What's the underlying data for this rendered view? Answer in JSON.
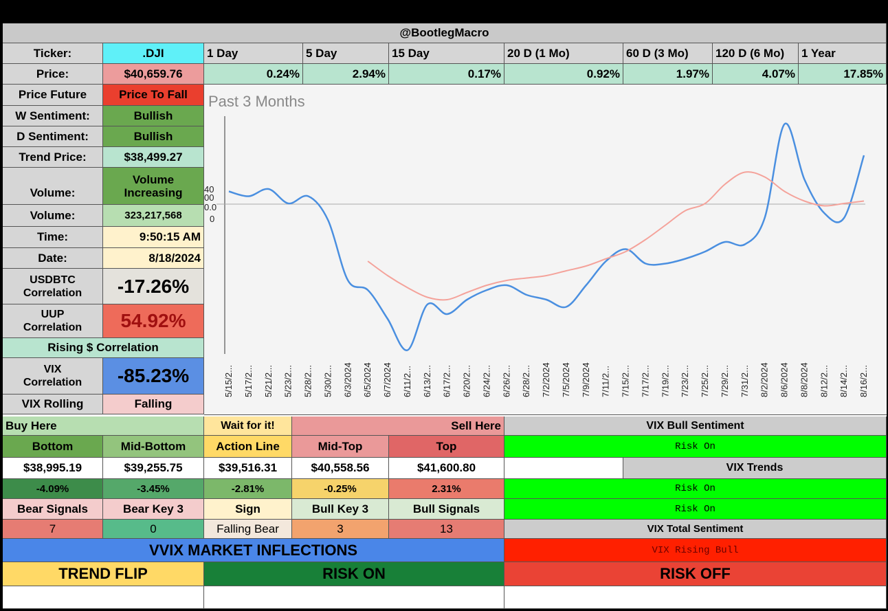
{
  "header": {
    "title": "@BootlegMacro"
  },
  "left": {
    "ticker_label": "Ticker:",
    "ticker_value": ".DJI",
    "price_label": "Price:",
    "price_value": "$40,659.76",
    "price_future_label": "Price Future",
    "price_future_value": "Price To Fall",
    "w_sent_label": "W Sentiment:",
    "w_sent_value": "Bullish",
    "d_sent_label": "D Sentiment:",
    "d_sent_value": "Bullish",
    "trend_label": "Trend Price:",
    "trend_value": "$38,499.27",
    "volume_label": "Volume:",
    "volume_value_1": "Volume",
    "volume_value_2": "Increasing",
    "volume2_label": "Volume:",
    "volume2_value": "323,217,568",
    "time_label": "Time:",
    "time_value": "9:50:15 AM",
    "date_label": "Date:",
    "date_value": "8/18/2024",
    "usdbtc_label_1": "USDBTC",
    "usdbtc_label_2": "Correlation",
    "usdbtc_value": "-17.26%",
    "uup_label_1": "UUP",
    "uup_label_2": "Correlation",
    "uup_value": "54.92%",
    "rising_label": "Rising $ Correlation",
    "vix_label_1": "VIX",
    "vix_label_2": "Correlation",
    "vix_value": "-85.23%",
    "vix_rolling_label": "VIX Rolling",
    "vix_rolling_value": "Falling"
  },
  "periods": [
    {
      "label": "1 Day",
      "value": "0.24%"
    },
    {
      "label": "5 Day",
      "value": "2.94%"
    },
    {
      "label": "15 Day",
      "value": "0.17%"
    },
    {
      "label": "20 D (1 Mo)",
      "value": "0.92%"
    },
    {
      "label": "60 D (3 Mo)",
      "value": "1.97%"
    },
    {
      "label": "120 D (6 Mo)",
      "value": "4.07%"
    },
    {
      "label": "1 Year",
      "value": "17.85%"
    }
  ],
  "chart_data": {
    "type": "line",
    "title": "Past 3 Months",
    "y_tick_fragments": [
      "40",
      "00",
      "0.0",
      "0"
    ],
    "x": [
      "5/15/2...",
      "5/17/2...",
      "5/21/2...",
      "5/23/2...",
      "5/28/2...",
      "5/30/2...",
      "6/3/2024",
      "6/5/2024",
      "6/7/2024",
      "6/11/2...",
      "6/13/2...",
      "6/17/2...",
      "6/20/2...",
      "6/24/2...",
      "6/26/2...",
      "6/28/2...",
      "7/2/2024",
      "7/5/2024",
      "7/9/2024",
      "7/11/2...",
      "7/15/2...",
      "7/17/2...",
      "7/19/2...",
      "7/23/2...",
      "7/25/2...",
      "7/29/2...",
      "7/31/2...",
      "8/2/2024",
      "8/6/2024",
      "8/8/2024",
      "8/12/2...",
      "8/14/2...",
      "8/16/2..."
    ],
    "ylim": [
      0,
      1
    ],
    "series": [
      {
        "color": "#4a8fe0",
        "values": [
          0.67,
          0.65,
          0.68,
          0.62,
          0.65,
          0.55,
          0.3,
          0.26,
          0.14,
          0.01,
          0.2,
          0.16,
          0.22,
          0.26,
          0.28,
          0.24,
          0.22,
          0.19,
          0.28,
          0.38,
          0.43,
          0.37,
          0.37,
          0.39,
          0.42,
          0.46,
          0.45,
          0.56,
          0.95,
          0.72,
          0.58,
          0.56,
          0.82
        ]
      },
      {
        "color": "#f4a29a",
        "values": [
          null,
          null,
          null,
          null,
          null,
          null,
          null,
          0.38,
          0.32,
          0.27,
          0.23,
          0.22,
          0.25,
          0.28,
          0.3,
          0.31,
          0.32,
          0.34,
          0.36,
          0.39,
          0.42,
          0.47,
          0.53,
          0.59,
          0.62,
          0.7,
          0.75,
          0.73,
          0.67,
          0.63,
          0.61,
          0.62,
          0.63
        ]
      }
    ]
  },
  "levels": {
    "buy_here": "Buy Here",
    "wait": "Wait for it!",
    "sell_here": "Sell Here",
    "headers": [
      "Bottom",
      "Mid-Bottom",
      "Action Line",
      "Mid-Top",
      "Top"
    ],
    "prices": [
      "$38,995.19",
      "$39,255.75",
      "$39,516.31",
      "$40,558.56",
      "$41,600.80"
    ],
    "pcts": [
      "-4.09%",
      "-3.45%",
      "-2.81%",
      "-0.25%",
      "2.31%"
    ],
    "signal_headers": [
      "Bear Signals",
      "Bear Key 3",
      "Sign",
      "Bull Key 3",
      "Bull Signals"
    ],
    "signal_values": [
      "7",
      "0",
      "Falling Bear",
      "3",
      "13"
    ]
  },
  "vix_panel": {
    "bull_sentiment_label": "VIX Bull Sentiment",
    "bull_sentiment_value": "Risk On",
    "trends_label": "VIX Trends",
    "trend_1": "Risk On",
    "trend_2": "Risk On",
    "total_label": "VIX Total Sentiment",
    "total_value": "VIX Rising Bull"
  },
  "vvix": {
    "title": "VVIX MARKET INFLECTIONS",
    "trend_flip": "TREND FLIP",
    "risk_on": "RISK ON",
    "risk_off": "RISK OFF"
  }
}
